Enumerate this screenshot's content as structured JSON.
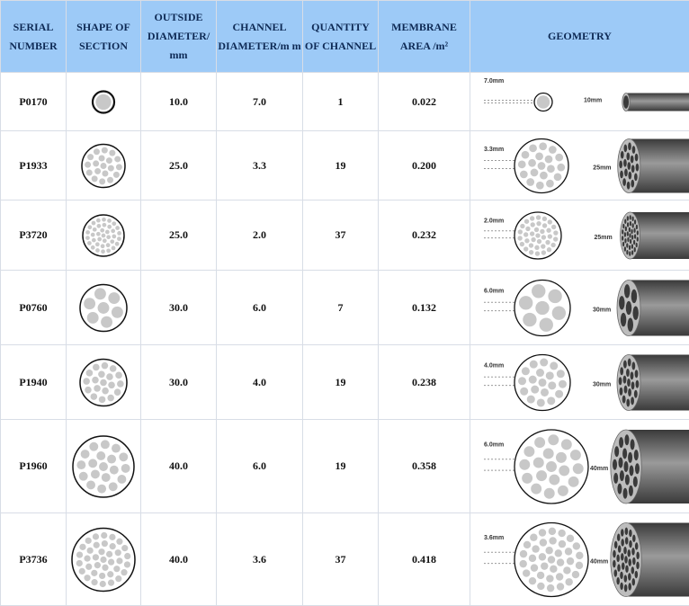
{
  "header": {
    "columns": [
      "SERIAL NUMBER",
      "SHAPE OF SECTION",
      "OUTSIDE DIAMETER/ mm",
      "CHANNEL DIAMETER/m m",
      "QUANTITY OF CHANNEL",
      "MEMBRANE AREA /m²",
      "GEOMETRY"
    ]
  },
  "rows": [
    {
      "serial": "P0170",
      "od": "10.0",
      "channel_diameter": "7.0",
      "quantity": "1",
      "area": "0.022",
      "geometry": {
        "channel_label": "7.0mm",
        "od_label": "10mm"
      }
    },
    {
      "serial": "P1933",
      "od": "25.0",
      "channel_diameter": "3.3",
      "quantity": "19",
      "area": "0.200",
      "geometry": {
        "channel_label": "3.3mm",
        "od_label": "25mm"
      }
    },
    {
      "serial": "P3720",
      "od": "25.0",
      "channel_diameter": "2.0",
      "quantity": "37",
      "area": "0.232",
      "geometry": {
        "channel_label": "2.0mm",
        "od_label": "25mm"
      }
    },
    {
      "serial": "P0760",
      "od": "30.0",
      "channel_diameter": "6.0",
      "quantity": "7",
      "area": "0.132",
      "geometry": {
        "channel_label": "6.0mm",
        "od_label": "30mm"
      }
    },
    {
      "serial": "P1940",
      "od": "30.0",
      "channel_diameter": "4.0",
      "quantity": "19",
      "area": "0.238",
      "geometry": {
        "channel_label": "4.0mm",
        "od_label": "30mm"
      }
    },
    {
      "serial": "P1960",
      "od": "40.0",
      "channel_diameter": "6.0",
      "quantity": "19",
      "area": "0.358",
      "geometry": {
        "channel_label": "6.0mm",
        "od_label": "40mm"
      }
    },
    {
      "serial": "P3736",
      "od": "40.0",
      "channel_diameter": "3.6",
      "quantity": "37",
      "area": "0.418",
      "geometry": {
        "channel_label": "3.6mm",
        "od_label": "40mm"
      }
    }
  ]
}
